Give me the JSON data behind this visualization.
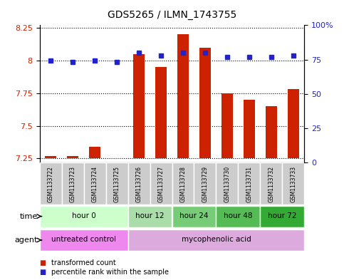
{
  "title": "GDS5265 / ILMN_1743755",
  "samples": [
    "GSM1133722",
    "GSM1133723",
    "GSM1133724",
    "GSM1133725",
    "GSM1133726",
    "GSM1133727",
    "GSM1133728",
    "GSM1133729",
    "GSM1133730",
    "GSM1133731",
    "GSM1133732",
    "GSM1133733"
  ],
  "transformed_count": [
    7.27,
    7.27,
    7.34,
    7.25,
    8.05,
    7.95,
    8.2,
    8.1,
    7.75,
    7.7,
    7.65,
    7.78
  ],
  "percentile_rank": [
    74,
    73,
    74,
    73,
    80,
    78,
    80,
    80,
    77,
    77,
    77,
    78
  ],
  "bar_color": "#cc2200",
  "dot_color": "#2222cc",
  "ylim_left": [
    7.22,
    8.27
  ],
  "ylim_right": [
    0,
    100
  ],
  "yticks_left": [
    7.25,
    7.5,
    7.75,
    8.0,
    8.25
  ],
  "yticks_right": [
    0,
    25,
    50,
    75,
    100
  ],
  "yticklabels_left": [
    "7.25",
    "7.5",
    "7.75",
    "8",
    "8.25"
  ],
  "yticklabels_right": [
    "0",
    "25",
    "50",
    "75",
    "100%"
  ],
  "time_groups": [
    {
      "label": "hour 0",
      "start": 0,
      "end": 4,
      "color": "#ccffcc"
    },
    {
      "label": "hour 12",
      "start": 4,
      "end": 6,
      "color": "#aaddaa"
    },
    {
      "label": "hour 24",
      "start": 6,
      "end": 8,
      "color": "#77cc77"
    },
    {
      "label": "hour 48",
      "start": 8,
      "end": 10,
      "color": "#55bb55"
    },
    {
      "label": "hour 72",
      "start": 10,
      "end": 12,
      "color": "#33aa33"
    }
  ],
  "agent_groups": [
    {
      "label": "untreated control",
      "start": 0,
      "end": 4,
      "color": "#ee88ee"
    },
    {
      "label": "mycophenolic acid",
      "start": 4,
      "end": 12,
      "color": "#ddaadd"
    }
  ],
  "baseline": 7.25,
  "grid_color": "black",
  "sample_box_color": "#cccccc",
  "border_color": "#888888"
}
